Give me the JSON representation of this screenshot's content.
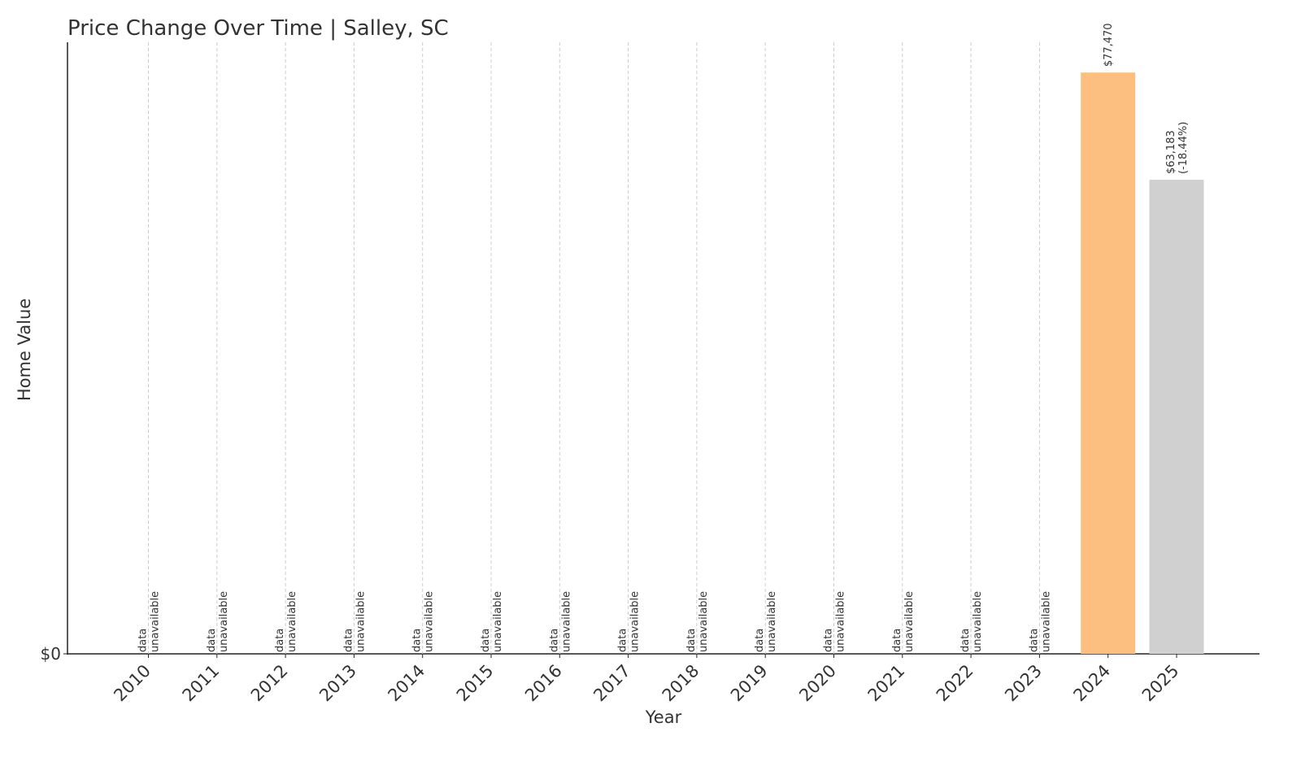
{
  "chart_data": {
    "type": "bar",
    "title": "Price Change Over Time | Salley, SC",
    "x_label": "Year",
    "y_label": "Home Value",
    "categories": [
      "2010",
      "2011",
      "2012",
      "2013",
      "2014",
      "2015",
      "2016",
      "2017",
      "2018",
      "2019",
      "2020",
      "2021",
      "2022",
      "2023",
      "2024",
      "2025"
    ],
    "values": [
      null,
      null,
      null,
      null,
      null,
      null,
      null,
      null,
      null,
      null,
      null,
      null,
      null,
      null,
      77470,
      63183
    ],
    "value_labels": [
      "data\nunavailable",
      "data\nunavailable",
      "data\nunavailable",
      "data\nunavailable",
      "data\nunavailable",
      "data\nunavailable",
      "data\nunavailable",
      "data\nunavailable",
      "data\nunavailable",
      "data\nunavailable",
      "data\nunavailable",
      "data\nunavailable",
      "data\nunavailable",
      "data\nunavailable",
      "$77,470",
      "$63,183\n(-18.44%)"
    ],
    "colors": [
      null,
      null,
      null,
      null,
      null,
      null,
      null,
      null,
      null,
      null,
      null,
      null,
      null,
      null,
      "#fdbf7f",
      "#d0d0d0"
    ],
    "ylim": [
      0,
      81500
    ],
    "yticks": [
      {
        "value": 0,
        "label": "$0"
      }
    ]
  }
}
